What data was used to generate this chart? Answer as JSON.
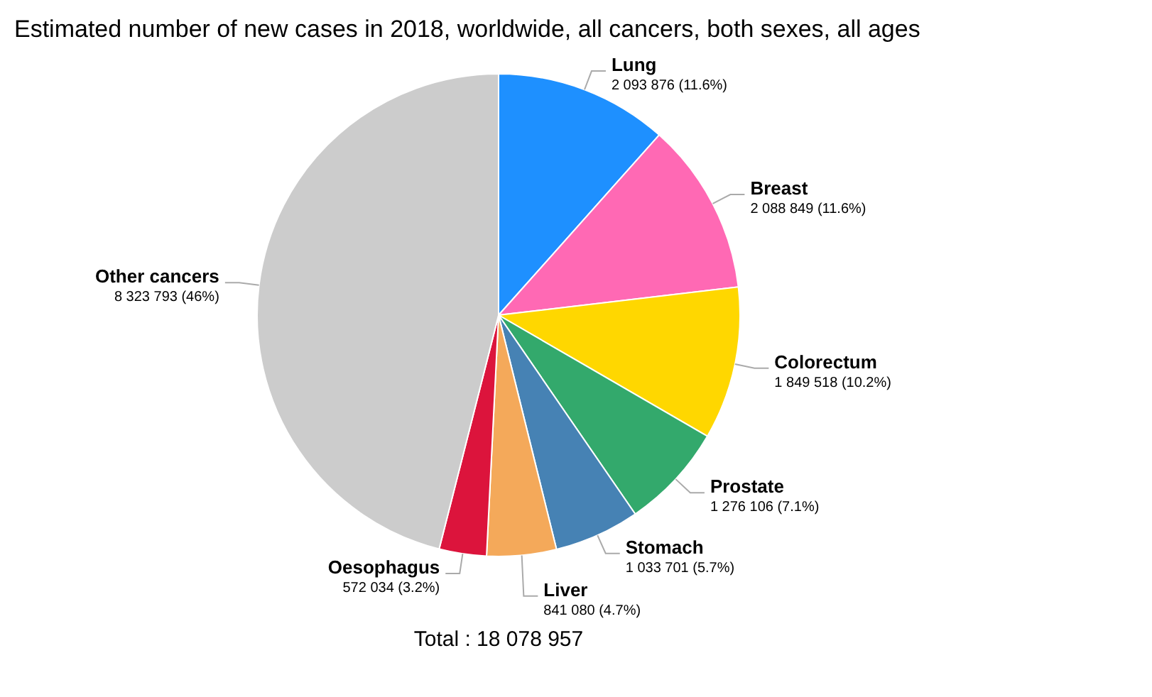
{
  "chart_data": {
    "type": "pie",
    "title": "Estimated number of new cases in 2018, worldwide, all cancers, both sexes, all ages",
    "categories": [
      "Lung",
      "Breast",
      "Colorectum",
      "Prostate",
      "Stomach",
      "Liver",
      "Oesophagus",
      "Other cancers"
    ],
    "values": [
      2093876,
      2088849,
      1849518,
      1276106,
      1033701,
      841080,
      572034,
      8323793
    ],
    "value_labels": [
      "2 093 876 (11.6%)",
      "2 088 849 (11.6%)",
      "1 849 518 (10.2%)",
      "1 276 106 (7.1%)",
      "1 033 701 (5.7%)",
      "841 080 (4.7%)",
      "572 034 (3.2%)",
      "8 323 793 (46%)"
    ],
    "colors": [
      "#1e90ff",
      "#ff69b4",
      "#ffd700",
      "#33a96c",
      "#4682b4",
      "#f4a95a",
      "#dc143c",
      "#cccccc"
    ],
    "annotations": [
      "Total : 18 078 957"
    ]
  }
}
